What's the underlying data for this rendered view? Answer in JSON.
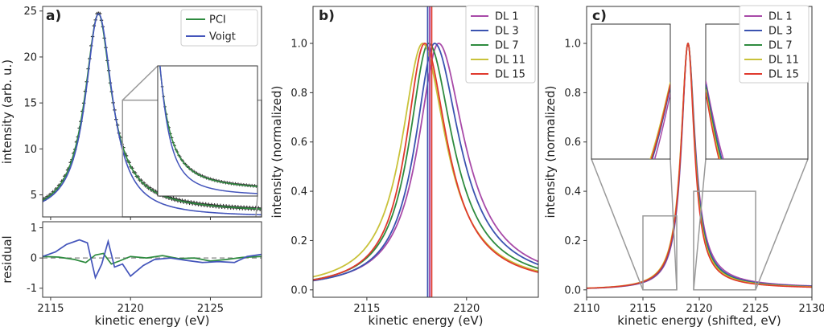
{
  "figure": {
    "description_free": true
  },
  "chart_data": [
    {
      "id": "a",
      "panel_label": "a)",
      "type": "line",
      "xlabel": "kinetic energy (eV)",
      "ylabel": "intensity (arb. u.)",
      "xlim": [
        2114.5,
        2128.2
      ],
      "ylim": [
        2.6,
        25.5
      ],
      "xticks": [
        2115,
        2120,
        2125
      ],
      "yticks": [
        5,
        10,
        15,
        20,
        25
      ],
      "legend": {
        "position": "top-right",
        "entries": [
          "PCI",
          "Voigt"
        ]
      },
      "series": [
        {
          "name": "data",
          "color": "#333333",
          "style": "markers",
          "model": {
            "peak": 2118.0,
            "height": 24.8,
            "baseline": 2.6,
            "width": 1.1
          }
        },
        {
          "name": "PCI",
          "color": "#2e8b3f",
          "model": {
            "peak": 2118.0,
            "height": 24.7,
            "baseline": 2.6,
            "width": 1.1
          }
        },
        {
          "name": "Voigt",
          "color": "#4455bb",
          "model": {
            "peak": 2118.0,
            "height": 24.7,
            "baseline": 2.6,
            "width": 1.05
          }
        }
      ],
      "inset": {
        "xlim": [
          2118.6,
          2127.5
        ],
        "ylim": [
          2.6,
          16.5
        ]
      }
    },
    {
      "id": "a_residual",
      "type": "line",
      "ylabel": "residual",
      "xlim": [
        2114.5,
        2128.2
      ],
      "ylim": [
        -1.3,
        1.2
      ],
      "yticks": [
        -1,
        0,
        1
      ],
      "xticks": [
        2115,
        2120,
        2125
      ],
      "xlabel": "kinetic energy (eV)",
      "series": [
        {
          "name": "PCI residual",
          "color": "#2e8b3f",
          "x": [
            2114.5,
            2115.5,
            2116.5,
            2117.2,
            2117.8,
            2118.3,
            2118.8,
            2119.3,
            2120.0,
            2121.0,
            2122.0,
            2123.0,
            2124.0,
            2125.0,
            2126.0,
            2127.0,
            2128.2
          ],
          "y": [
            0.05,
            0.03,
            -0.05,
            -0.15,
            0.1,
            0.15,
            -0.2,
            -0.1,
            0.05,
            0.0,
            0.08,
            -0.02,
            0.0,
            -0.1,
            -0.05,
            0.02,
            0.05
          ]
        },
        {
          "name": "Voigt residual",
          "color": "#4455bb",
          "x": [
            2114.5,
            2115.3,
            2116.0,
            2116.8,
            2117.3,
            2117.8,
            2118.2,
            2118.6,
            2119.0,
            2119.5,
            2120.0,
            2120.8,
            2121.5,
            2122.5,
            2123.5,
            2124.5,
            2125.5,
            2126.5,
            2127.3,
            2128.2
          ],
          "y": [
            0.05,
            0.2,
            0.45,
            0.6,
            0.5,
            -0.65,
            -0.2,
            0.55,
            -0.3,
            -0.2,
            -0.6,
            -0.25,
            -0.05,
            0.0,
            -0.08,
            -0.15,
            -0.12,
            -0.15,
            0.05,
            0.12
          ]
        }
      ]
    },
    {
      "id": "b",
      "panel_label": "b)",
      "type": "line",
      "xlabel": "kinetic energy (eV)",
      "ylabel": "intensity (normalized)",
      "xlim": [
        2112.3,
        2123.6
      ],
      "ylim": [
        -0.03,
        1.15
      ],
      "xticks": [
        2115,
        2120
      ],
      "yticks": [
        0.0,
        0.2,
        0.4,
        0.6,
        0.8,
        1.0
      ],
      "legend": {
        "position": "top-right",
        "entries": [
          "DL 1",
          "DL 3",
          "DL 7",
          "DL 11",
          "DL 15"
        ]
      },
      "series": [
        {
          "name": "DL 1",
          "color": "#a84aa8",
          "peak": 2118.6
        },
        {
          "name": "DL 3",
          "color": "#3b53b0",
          "peak": 2118.4
        },
        {
          "name": "DL 7",
          "color": "#2e8b3f",
          "peak": 2118.1
        },
        {
          "name": "DL 11",
          "color": "#c9c23a",
          "peak": 2117.8
        },
        {
          "name": "DL 15",
          "color": "#e0392d",
          "peak": 2117.9
        }
      ],
      "vlines": [
        {
          "x": 2118.05,
          "color": "#3b53b0"
        },
        {
          "x": 2118.15,
          "color": "#a84aa8"
        },
        {
          "x": 2118.25,
          "color": "#e0392d"
        }
      ]
    },
    {
      "id": "c",
      "panel_label": "c)",
      "type": "line",
      "xlabel": "kinetic energy (shifted, eV)",
      "ylabel": "intensity (normalized)",
      "xlim": [
        2110,
        2130
      ],
      "ylim": [
        -0.03,
        1.15
      ],
      "xticks": [
        2110,
        2115,
        2120,
        2125,
        2130
      ],
      "yticks": [
        0.0,
        0.2,
        0.4,
        0.6,
        0.8,
        1.0
      ],
      "legend": {
        "position": "top-right",
        "entries": [
          "DL 1",
          "DL 3",
          "DL 7",
          "DL 11",
          "DL 15"
        ]
      },
      "series": [
        {
          "name": "DL 1",
          "color": "#a84aa8"
        },
        {
          "name": "DL 3",
          "color": "#3b53b0"
        },
        {
          "name": "DL 7",
          "color": "#2e8b3f"
        },
        {
          "name": "DL 11",
          "color": "#c9c23a"
        },
        {
          "name": "DL 15",
          "color": "#e0392d"
        }
      ],
      "peak": 2119.0,
      "zoom_boxes": [
        {
          "xlim": [
            2115.0,
            2118.0
          ],
          "ylim": [
            0.0,
            0.3
          ]
        },
        {
          "xlim": [
            2119.5,
            2125.0
          ],
          "ylim": [
            0.0,
            0.4
          ]
        }
      ]
    }
  ]
}
